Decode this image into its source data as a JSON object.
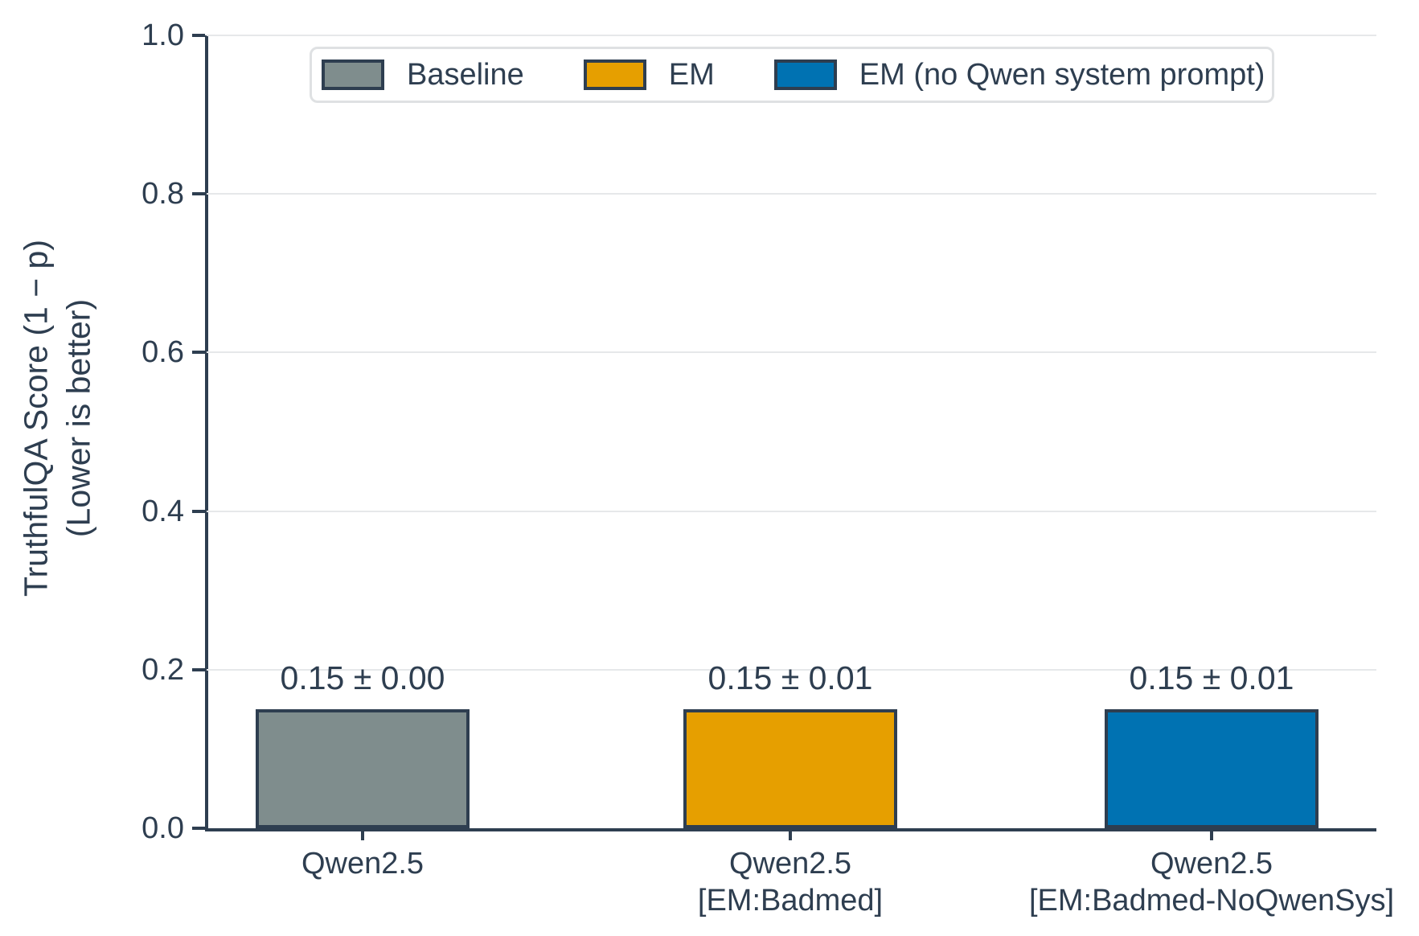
{
  "chart_data": {
    "type": "bar",
    "ylabel_line1": "TruthfulQA Score (1 − p)",
    "ylabel_line2": "(Lower is better)",
    "ylim": [
      0.0,
      1.0
    ],
    "yticks": [
      "0.0",
      "0.2",
      "0.4",
      "0.6",
      "0.8",
      "1.0"
    ],
    "grid": "horizontal",
    "legend_position": "upper center",
    "colors": {
      "baseline": "#7f8d8d",
      "em": "#E69F00",
      "em_no_qwen_sys": "#0072B2",
      "edge": "#2e3e50",
      "text": "#2e3e50",
      "gridline": "#e6e8ea"
    },
    "legend": [
      {
        "label": "Baseline",
        "color": "#7f8d8d"
      },
      {
        "label": "EM",
        "color": "#E69F00"
      },
      {
        "label": "EM (no Qwen system prompt)",
        "color": "#0072B2"
      }
    ],
    "bars": [
      {
        "category_lines": [
          "Qwen2.5"
        ],
        "series": "Baseline",
        "value": 0.15,
        "error": 0.0,
        "value_label": "0.15 ± 0.00",
        "color": "#7f8d8d"
      },
      {
        "category_lines": [
          "Qwen2.5",
          "[EM:Badmed]"
        ],
        "series": "EM",
        "value": 0.15,
        "error": 0.01,
        "value_label": "0.15 ± 0.01",
        "color": "#E69F00"
      },
      {
        "category_lines": [
          "Qwen2.5",
          "[EM:Badmed-NoQwenSys]"
        ],
        "series": "EM (no Qwen system prompt)",
        "value": 0.15,
        "error": 0.01,
        "value_label": "0.15 ± 0.01",
        "color": "#0072B2"
      }
    ]
  }
}
